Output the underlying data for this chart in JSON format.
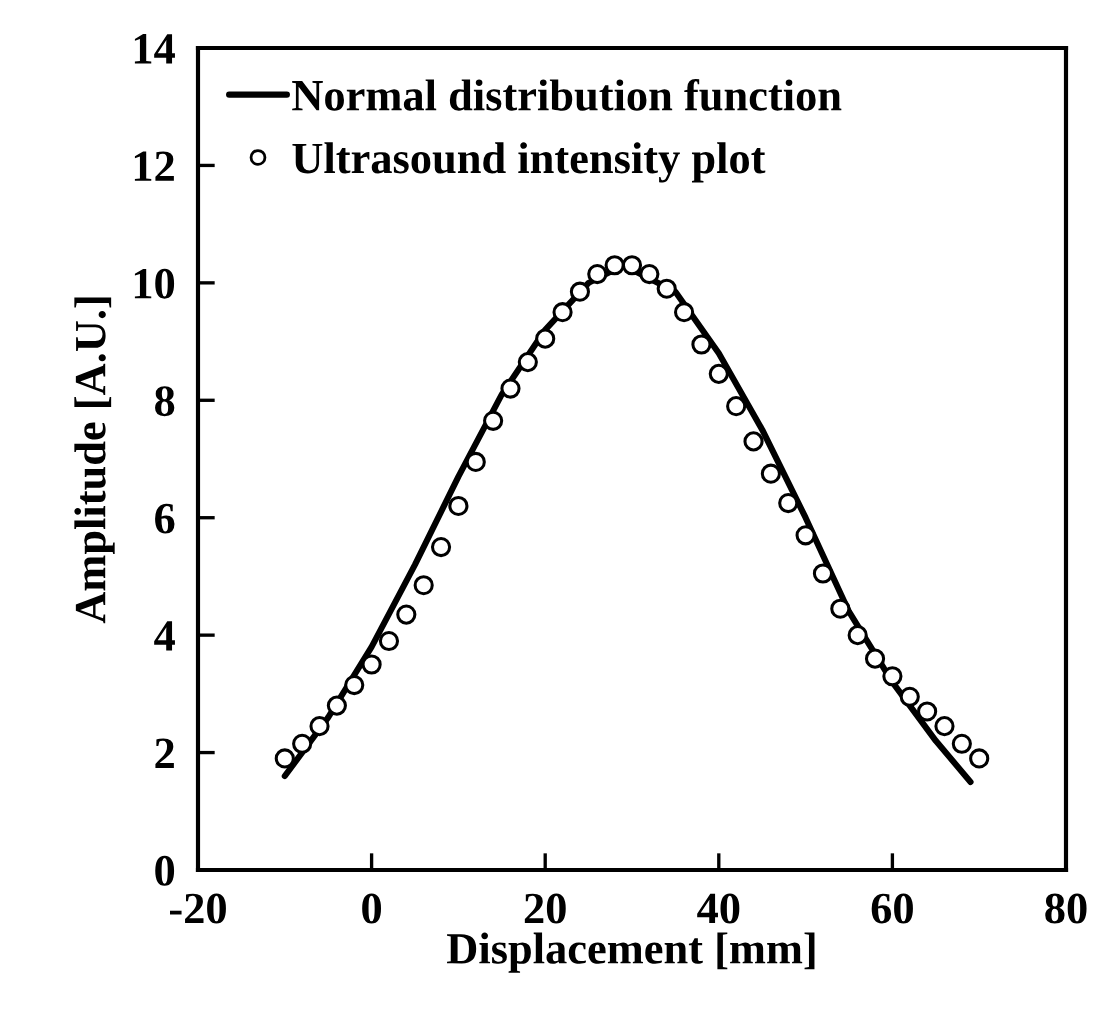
{
  "chart_data": {
    "type": "line",
    "xlabel": "Displacement [mm]",
    "ylabel": "Amplitude [A.U.]",
    "xlim": [
      -20,
      80
    ],
    "xticks": [
      -20,
      0,
      20,
      40,
      60,
      80
    ],
    "ylim": [
      0,
      14
    ],
    "yticks": [
      0,
      2,
      4,
      6,
      8,
      10,
      12,
      14
    ],
    "grid": false,
    "legend": "top left",
    "series": [
      {
        "name": "Normal distribution function",
        "color": "#000000",
        "line_style": "solid",
        "x": [
          -10,
          -5,
          0,
          5,
          10,
          15,
          20,
          25,
          29,
          35,
          40,
          45,
          50,
          55,
          60,
          65,
          69
        ],
        "values": [
          1.6,
          2.6,
          3.8,
          5.2,
          6.7,
          8.1,
          9.2,
          10.0,
          10.3,
          9.85,
          8.8,
          7.5,
          6.0,
          4.4,
          3.2,
          2.2,
          1.5
        ]
      },
      {
        "name": "Ultrasound intensity plot",
        "type": "scatter",
        "color": "#000000",
        "marker": "circle",
        "x": [
          -10,
          -8,
          -6,
          -4,
          -2,
          0,
          2,
          4,
          6,
          8,
          10,
          12,
          14,
          16,
          18,
          20,
          22,
          24,
          26,
          28,
          30,
          32,
          34,
          36,
          38,
          40,
          42,
          44,
          46,
          48,
          50,
          52,
          54,
          56,
          58,
          60,
          62,
          64,
          66,
          68,
          70
        ],
        "values": [
          1.9,
          2.15,
          2.45,
          2.8,
          3.15,
          3.5,
          3.9,
          4.35,
          4.85,
          5.5,
          6.2,
          6.95,
          7.65,
          8.2,
          8.65,
          9.05,
          9.5,
          9.85,
          10.15,
          10.3,
          10.3,
          10.15,
          9.9,
          9.5,
          8.95,
          8.45,
          7.9,
          7.3,
          6.75,
          6.25,
          5.7,
          5.05,
          4.45,
          4.0,
          3.6,
          3.3,
          2.95,
          2.7,
          2.45,
          2.15,
          1.9
        ]
      }
    ]
  }
}
